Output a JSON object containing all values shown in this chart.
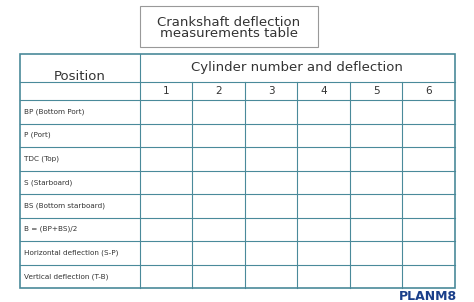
{
  "title_line1": "Crankshaft deflection",
  "title_line2": "measurements table",
  "title_fontsize": 9.5,
  "header1": "Position",
  "header2": "Cylinder number and deflection",
  "col_numbers": [
    "1",
    "2",
    "3",
    "4",
    "5",
    "6"
  ],
  "row_labels": [
    "BP (Bottom Port)",
    "P (Port)",
    "TDC (Top)",
    "S (Starboard)",
    "BS (Bottom starboard)",
    "B = (BP+BS)/2",
    "Horizontal deflection (S-P)",
    "Vertical deflection (T-B)"
  ],
  "table_border_color": "#4a8a9a",
  "title_border_color": "#999999",
  "background_color": "#ffffff",
  "text_color_dark": "#333333",
  "planm8_color": "#1a3f8a",
  "font_family": "DejaVu Sans"
}
